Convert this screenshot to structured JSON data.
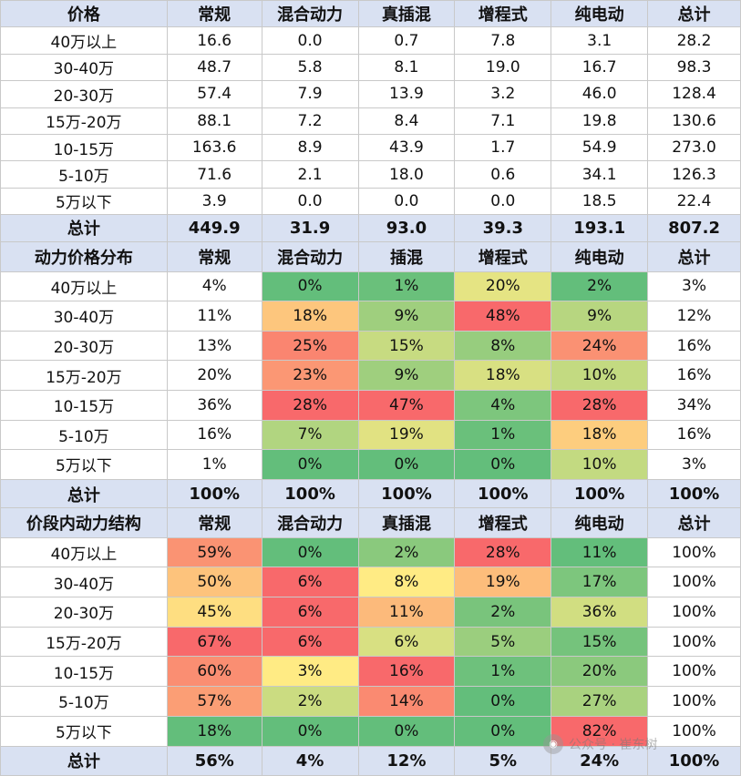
{
  "colors": {
    "header_bg": "#d9e1f2",
    "scale_low": "#63be7b",
    "scale_mid": "#ffeb84",
    "scale_high": "#f8696b"
  },
  "sales_table": {
    "headers": [
      "价格",
      "常规",
      "混合动力",
      "真插混",
      "增程式",
      "纯电动",
      "总计"
    ],
    "rows": [
      [
        "40万以上",
        "16.6",
        "0.0",
        "0.7",
        "7.8",
        "3.1",
        "28.2"
      ],
      [
        "30-40万",
        "48.7",
        "5.8",
        "8.1",
        "19.0",
        "16.7",
        "98.3"
      ],
      [
        "20-30万",
        "57.4",
        "7.9",
        "13.9",
        "3.2",
        "46.0",
        "128.4"
      ],
      [
        "15万-20万",
        "88.1",
        "7.2",
        "8.4",
        "7.1",
        "19.8",
        "130.6"
      ],
      [
        "10-15万",
        "163.6",
        "8.9",
        "43.9",
        "1.7",
        "54.9",
        "273.0"
      ],
      [
        "5-10万",
        "71.6",
        "2.1",
        "18.0",
        "0.6",
        "34.1",
        "126.3"
      ],
      [
        "5万以下",
        "3.9",
        "0.0",
        "0.0",
        "0.0",
        "18.5",
        "22.4"
      ]
    ],
    "total": [
      "总计",
      "449.9",
      "31.9",
      "93.0",
      "39.3",
      "193.1",
      "807.2"
    ]
  },
  "power_distribution": {
    "headers": [
      "动力价格分布",
      "常规",
      "混合动力",
      "插混",
      "增程式",
      "纯电动",
      "总计"
    ],
    "rows": [
      [
        "40万以上",
        "4%",
        "0%",
        "1%",
        "20%",
        "2%",
        "3%"
      ],
      [
        "30-40万",
        "11%",
        "18%",
        "9%",
        "48%",
        "9%",
        "12%"
      ],
      [
        "20-30万",
        "13%",
        "25%",
        "15%",
        "8%",
        "24%",
        "16%"
      ],
      [
        "15万-20万",
        "20%",
        "23%",
        "9%",
        "18%",
        "10%",
        "16%"
      ],
      [
        "10-15万",
        "36%",
        "28%",
        "47%",
        "4%",
        "28%",
        "34%"
      ],
      [
        "5-10万",
        "16%",
        "7%",
        "19%",
        "1%",
        "18%",
        "16%"
      ],
      [
        "5万以下",
        "1%",
        "0%",
        "0%",
        "0%",
        "10%",
        "3%"
      ]
    ],
    "total": [
      "总计",
      "100%",
      "100%",
      "100%",
      "100%",
      "100%",
      "100%"
    ]
  },
  "price_band_structure": {
    "headers": [
      "价段内动力结构",
      "常规",
      "混合动力",
      "真插混",
      "增程式",
      "纯电动",
      "总计"
    ],
    "rows": [
      [
        "40万以上",
        "59%",
        "0%",
        "2%",
        "28%",
        "11%",
        "100%"
      ],
      [
        "30-40万",
        "50%",
        "6%",
        "8%",
        "19%",
        "17%",
        "100%"
      ],
      [
        "20-30万",
        "45%",
        "6%",
        "11%",
        "2%",
        "36%",
        "100%"
      ],
      [
        "15万-20万",
        "67%",
        "6%",
        "6%",
        "5%",
        "15%",
        "100%"
      ],
      [
        "10-15万",
        "60%",
        "3%",
        "16%",
        "1%",
        "20%",
        "100%"
      ],
      [
        "5-10万",
        "57%",
        "2%",
        "14%",
        "0%",
        "27%",
        "100%"
      ],
      [
        "5万以下",
        "18%",
        "0%",
        "0%",
        "0%",
        "82%",
        "100%"
      ]
    ],
    "total": [
      "总计",
      "56%",
      "4%",
      "12%",
      "5%",
      "24%",
      "100%"
    ]
  },
  "watermark": {
    "text": "公众号 · 崔东树"
  }
}
